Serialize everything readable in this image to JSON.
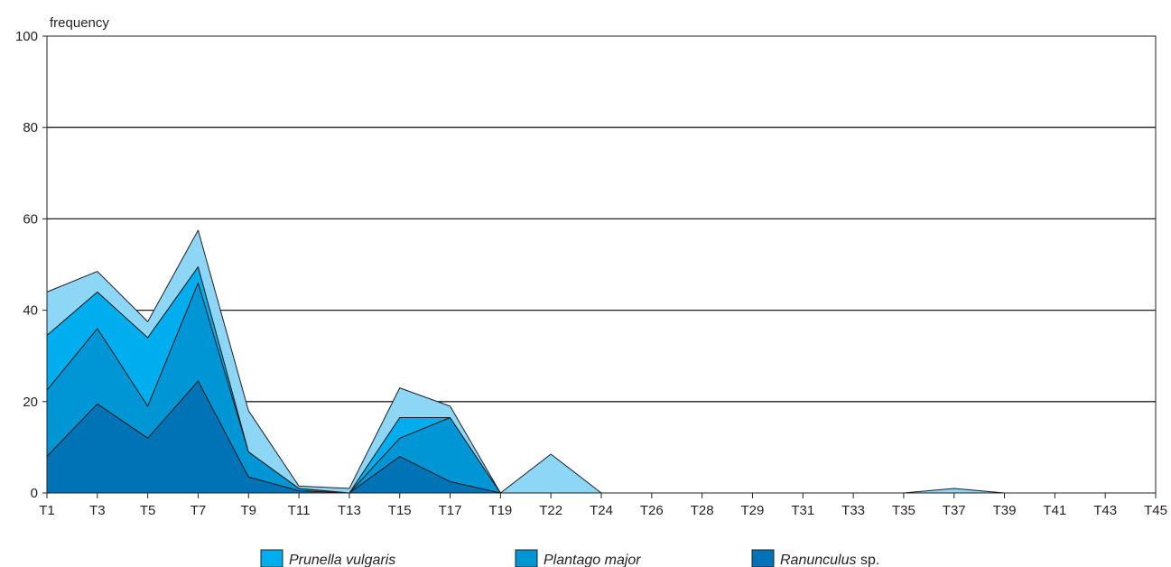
{
  "chart_data": {
    "type": "area",
    "stacked": true,
    "ylabel": "frequency",
    "xlabel": "",
    "ylim": [
      0,
      100
    ],
    "yticks": [
      0,
      20,
      40,
      60,
      80,
      100
    ],
    "grid": "horizontal",
    "categories": [
      "T1",
      "T3",
      "T5",
      "T7",
      "T9",
      "T11",
      "T13",
      "T15",
      "T17",
      "T19",
      "T22",
      "T24",
      "T26",
      "T28",
      "T29",
      "T31",
      "T33",
      "T35",
      "T37",
      "T39",
      "T41",
      "T43",
      "T45"
    ],
    "series": [
      {
        "name": "Ranunculus",
        "name_suffix": " sp.",
        "color": "#0072b6",
        "values": [
          8,
          19.5,
          12,
          24.5,
          3.5,
          0.5,
          0,
          8,
          2.5,
          0,
          0,
          0,
          0,
          0,
          0,
          0,
          0,
          0,
          0,
          0,
          0,
          0,
          0
        ]
      },
      {
        "name": "Plantago major",
        "name_suffix": "",
        "color": "#0096d6",
        "values": [
          14.5,
          16.5,
          7,
          21.5,
          5.5,
          0.5,
          0,
          4,
          14,
          0,
          0,
          0,
          0,
          0,
          0,
          0,
          0,
          0,
          0,
          0,
          0,
          0,
          0
        ]
      },
      {
        "name": "Prunella vulgaris",
        "name_suffix": "",
        "color": "#00aeef",
        "values": [
          12,
          8,
          15,
          3.5,
          0,
          0,
          0,
          4.5,
          0,
          0,
          0,
          0,
          0,
          0,
          0,
          0,
          0,
          0,
          0,
          0,
          0,
          0,
          0
        ]
      },
      {
        "name": "",
        "name_suffix": "",
        "color": "#8dd6f5",
        "values": [
          9.5,
          4.5,
          3.5,
          8,
          9,
          0.5,
          1,
          6.5,
          2.5,
          0,
          8.5,
          0,
          0,
          0,
          0,
          0,
          0,
          0,
          1,
          0,
          0,
          0,
          0
        ]
      }
    ],
    "legend": {
      "placement": "bottom"
    }
  },
  "legend_items": [
    {
      "name": "Prunella vulgaris",
      "suffix": "",
      "color": "#00aeef"
    },
    {
      "name": "Plantago major",
      "suffix": "",
      "color": "#0096d6"
    },
    {
      "name": "Ranunculus",
      "suffix": " sp.",
      "color": "#0072b6"
    }
  ]
}
